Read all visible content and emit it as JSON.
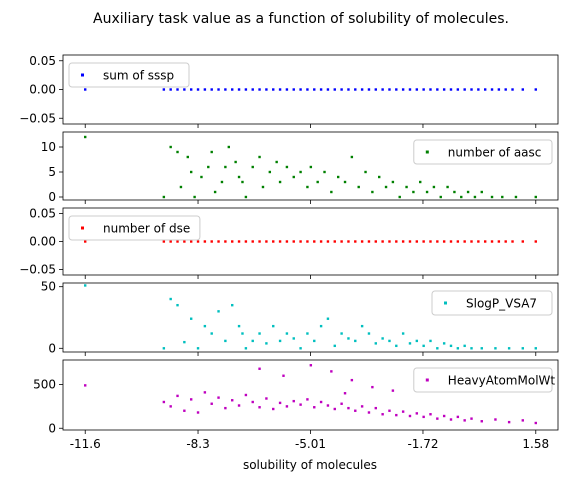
{
  "chart_data": {
    "type": "scatter",
    "title": "Auxiliary task value as a function of solubility of molecules.",
    "xlabel": "solubility of molecules",
    "x_ticks": [
      -11.6,
      -8.3,
      -5.01,
      -1.72,
      1.58
    ],
    "x_tick_labels": [
      "-11.6",
      "-8.3",
      "-5.01",
      "-1.72",
      "1.58"
    ],
    "xlim": [
      -12.25,
      2.23
    ],
    "grid": false,
    "panels": [
      {
        "name": "sum of sssp",
        "color": "#0000ff",
        "legend_loc": "upper left",
        "ylim": [
          -0.06,
          0.06
        ],
        "y_ticks": [
          -0.05,
          0,
          0.05
        ],
        "y_tick_labels": [
          "−0.05",
          "0.00",
          "0.05"
        ],
        "points": [
          [
            -11.6,
            0
          ],
          [
            -9.3,
            0
          ],
          [
            -9.1,
            0
          ],
          [
            -8.9,
            0
          ],
          [
            -8.7,
            0
          ],
          [
            -8.5,
            0
          ],
          [
            -8.3,
            0
          ],
          [
            -8.1,
            0
          ],
          [
            -7.9,
            0
          ],
          [
            -7.7,
            0
          ],
          [
            -7.5,
            0
          ],
          [
            -7.3,
            0
          ],
          [
            -7.1,
            0
          ],
          [
            -6.9,
            0
          ],
          [
            -6.7,
            0
          ],
          [
            -6.5,
            0
          ],
          [
            -6.3,
            0
          ],
          [
            -6.1,
            0
          ],
          [
            -5.9,
            0
          ],
          [
            -5.7,
            0
          ],
          [
            -5.5,
            0
          ],
          [
            -5.3,
            0
          ],
          [
            -5.1,
            0
          ],
          [
            -4.9,
            0
          ],
          [
            -4.7,
            0
          ],
          [
            -4.5,
            0
          ],
          [
            -4.3,
            0
          ],
          [
            -4.1,
            0
          ],
          [
            -3.9,
            0
          ],
          [
            -3.7,
            0
          ],
          [
            -3.5,
            0
          ],
          [
            -3.3,
            0
          ],
          [
            -3.1,
            0
          ],
          [
            -2.9,
            0
          ],
          [
            -2.7,
            0
          ],
          [
            -2.5,
            0
          ],
          [
            -2.3,
            0
          ],
          [
            -2.1,
            0
          ],
          [
            -1.9,
            0
          ],
          [
            -1.7,
            0
          ],
          [
            -1.5,
            0
          ],
          [
            -1.3,
            0
          ],
          [
            -1.1,
            0
          ],
          [
            -0.9,
            0
          ],
          [
            -0.7,
            0
          ],
          [
            -0.5,
            0
          ],
          [
            -0.3,
            0
          ],
          [
            -0.1,
            0
          ],
          [
            0.1,
            0
          ],
          [
            0.3,
            0
          ],
          [
            0.5,
            0
          ],
          [
            0.7,
            0
          ],
          [
            0.9,
            0
          ],
          [
            1.2,
            0
          ],
          [
            1.58,
            0
          ]
        ]
      },
      {
        "name": "number of aasc",
        "color": "#008000",
        "legend_loc": "upper right",
        "ylim": [
          -0.6,
          13
        ],
        "y_ticks": [
          0,
          5,
          10
        ],
        "y_tick_labels": [
          "0",
          "5",
          "10"
        ],
        "points": [
          [
            -11.6,
            12
          ],
          [
            -9.3,
            0
          ],
          [
            -9.1,
            10
          ],
          [
            -8.9,
            9
          ],
          [
            -8.8,
            2
          ],
          [
            -8.6,
            8
          ],
          [
            -8.5,
            5
          ],
          [
            -8.4,
            0
          ],
          [
            -8.2,
            4
          ],
          [
            -8.0,
            6
          ],
          [
            -7.9,
            9
          ],
          [
            -7.8,
            1
          ],
          [
            -7.6,
            3
          ],
          [
            -7.5,
            6
          ],
          [
            -7.4,
            10
          ],
          [
            -7.2,
            7
          ],
          [
            -7.1,
            4
          ],
          [
            -7.0,
            3
          ],
          [
            -6.9,
            0
          ],
          [
            -6.7,
            6
          ],
          [
            -6.5,
            8
          ],
          [
            -6.4,
            2
          ],
          [
            -6.2,
            5
          ],
          [
            -6.0,
            7
          ],
          [
            -5.9,
            3
          ],
          [
            -5.7,
            6
          ],
          [
            -5.5,
            4
          ],
          [
            -5.3,
            5
          ],
          [
            -5.1,
            2
          ],
          [
            -5.0,
            6
          ],
          [
            -4.8,
            3
          ],
          [
            -4.6,
            5
          ],
          [
            -4.4,
            1
          ],
          [
            -4.2,
            4
          ],
          [
            -4.0,
            3
          ],
          [
            -3.8,
            8
          ],
          [
            -3.6,
            2
          ],
          [
            -3.4,
            5
          ],
          [
            -3.2,
            1
          ],
          [
            -3.0,
            4
          ],
          [
            -2.8,
            2
          ],
          [
            -2.6,
            3
          ],
          [
            -2.4,
            0
          ],
          [
            -2.2,
            2
          ],
          [
            -2.0,
            1
          ],
          [
            -1.8,
            3
          ],
          [
            -1.6,
            1
          ],
          [
            -1.4,
            2
          ],
          [
            -1.2,
            0
          ],
          [
            -1.0,
            2
          ],
          [
            -0.8,
            1
          ],
          [
            -0.6,
            0
          ],
          [
            -0.4,
            1
          ],
          [
            -0.2,
            0
          ],
          [
            0.0,
            1
          ],
          [
            0.3,
            0
          ],
          [
            0.6,
            0
          ],
          [
            1.0,
            0
          ],
          [
            1.58,
            0
          ]
        ]
      },
      {
        "name": "number of dse",
        "color": "#ff0000",
        "legend_loc": "upper left",
        "ylim": [
          -0.06,
          0.06
        ],
        "y_ticks": [
          -0.05,
          0,
          0.05
        ],
        "y_tick_labels": [
          "−0.05",
          "0.00",
          "0.05"
        ],
        "points": [
          [
            -11.6,
            0
          ],
          [
            -9.3,
            0
          ],
          [
            -9.1,
            0
          ],
          [
            -8.9,
            0
          ],
          [
            -8.7,
            0
          ],
          [
            -8.5,
            0
          ],
          [
            -8.3,
            0
          ],
          [
            -8.1,
            0
          ],
          [
            -7.9,
            0
          ],
          [
            -7.7,
            0
          ],
          [
            -7.5,
            0
          ],
          [
            -7.3,
            0
          ],
          [
            -7.1,
            0
          ],
          [
            -6.9,
            0
          ],
          [
            -6.7,
            0
          ],
          [
            -6.5,
            0
          ],
          [
            -6.3,
            0
          ],
          [
            -6.1,
            0
          ],
          [
            -5.9,
            0
          ],
          [
            -5.7,
            0
          ],
          [
            -5.5,
            0
          ],
          [
            -5.3,
            0
          ],
          [
            -5.1,
            0
          ],
          [
            -4.9,
            0
          ],
          [
            -4.7,
            0
          ],
          [
            -4.5,
            0
          ],
          [
            -4.3,
            0
          ],
          [
            -4.1,
            0
          ],
          [
            -3.9,
            0
          ],
          [
            -3.7,
            0
          ],
          [
            -3.5,
            0
          ],
          [
            -3.3,
            0
          ],
          [
            -3.1,
            0
          ],
          [
            -2.9,
            0
          ],
          [
            -2.7,
            0
          ],
          [
            -2.5,
            0
          ],
          [
            -2.3,
            0
          ],
          [
            -2.1,
            0
          ],
          [
            -1.9,
            0
          ],
          [
            -1.7,
            0
          ],
          [
            -1.5,
            0
          ],
          [
            -1.3,
            0
          ],
          [
            -1.1,
            0
          ],
          [
            -0.9,
            0
          ],
          [
            -0.7,
            0
          ],
          [
            -0.5,
            0
          ],
          [
            -0.3,
            0
          ],
          [
            -0.1,
            0
          ],
          [
            0.1,
            0
          ],
          [
            0.3,
            0
          ],
          [
            0.5,
            0
          ],
          [
            0.7,
            0
          ],
          [
            0.9,
            0
          ],
          [
            1.2,
            0
          ],
          [
            1.58,
            0
          ]
        ]
      },
      {
        "name": "SlogP_VSA7",
        "color": "#00bfbf",
        "legend_loc": "upper right",
        "ylim": [
          -3,
          53
        ],
        "y_ticks": [
          0,
          50
        ],
        "y_tick_labels": [
          "0",
          "50"
        ],
        "points": [
          [
            -11.6,
            51
          ],
          [
            -9.3,
            0
          ],
          [
            -9.1,
            40
          ],
          [
            -8.9,
            35
          ],
          [
            -8.7,
            5
          ],
          [
            -8.5,
            24
          ],
          [
            -8.3,
            0
          ],
          [
            -8.1,
            18
          ],
          [
            -7.9,
            12
          ],
          [
            -7.7,
            30
          ],
          [
            -7.5,
            6
          ],
          [
            -7.3,
            35
          ],
          [
            -7.1,
            18
          ],
          [
            -7.0,
            12
          ],
          [
            -6.9,
            0
          ],
          [
            -6.7,
            6
          ],
          [
            -6.5,
            12
          ],
          [
            -6.3,
            4
          ],
          [
            -6.1,
            18
          ],
          [
            -5.9,
            6
          ],
          [
            -5.7,
            12
          ],
          [
            -5.5,
            8
          ],
          [
            -5.3,
            0
          ],
          [
            -5.1,
            12
          ],
          [
            -4.9,
            6
          ],
          [
            -4.7,
            18
          ],
          [
            -4.5,
            24
          ],
          [
            -4.3,
            2
          ],
          [
            -4.1,
            12
          ],
          [
            -3.9,
            8
          ],
          [
            -3.7,
            6
          ],
          [
            -3.5,
            18
          ],
          [
            -3.3,
            12
          ],
          [
            -3.1,
            4
          ],
          [
            -2.9,
            8
          ],
          [
            -2.7,
            6
          ],
          [
            -2.5,
            2
          ],
          [
            -2.3,
            12
          ],
          [
            -2.1,
            4
          ],
          [
            -1.9,
            6
          ],
          [
            -1.7,
            2
          ],
          [
            -1.5,
            6
          ],
          [
            -1.3,
            0
          ],
          [
            -1.1,
            4
          ],
          [
            -0.9,
            2
          ],
          [
            -0.7,
            0
          ],
          [
            -0.5,
            2
          ],
          [
            -0.3,
            0
          ],
          [
            0.0,
            0
          ],
          [
            0.4,
            0
          ],
          [
            0.8,
            0
          ],
          [
            1.2,
            0
          ],
          [
            1.58,
            0
          ]
        ]
      },
      {
        "name": "HeavyAtomMolWt",
        "color": "#bf00bf",
        "legend_loc": "upper right",
        "ylim": [
          -20,
          780
        ],
        "y_ticks": [
          0,
          500
        ],
        "y_tick_labels": [
          "0",
          "500"
        ],
        "points": [
          [
            -11.6,
            490
          ],
          [
            -9.3,
            300
          ],
          [
            -9.1,
            250
          ],
          [
            -8.9,
            370
          ],
          [
            -8.7,
            200
          ],
          [
            -8.5,
            330
          ],
          [
            -8.3,
            180
          ],
          [
            -8.1,
            410
          ],
          [
            -7.9,
            280
          ],
          [
            -7.7,
            350
          ],
          [
            -7.5,
            230
          ],
          [
            -7.3,
            320
          ],
          [
            -7.1,
            260
          ],
          [
            -6.9,
            380
          ],
          [
            -6.7,
            300
          ],
          [
            -6.5,
            240
          ],
          [
            -6.3,
            340
          ],
          [
            -6.1,
            220
          ],
          [
            -5.9,
            290
          ],
          [
            -5.7,
            250
          ],
          [
            -5.5,
            310
          ],
          [
            -5.3,
            270
          ],
          [
            -5.1,
            330
          ],
          [
            -4.9,
            240
          ],
          [
            -4.7,
            300
          ],
          [
            -4.5,
            260
          ],
          [
            -4.3,
            220
          ],
          [
            -4.1,
            280
          ],
          [
            -3.9,
            230
          ],
          [
            -3.7,
            200
          ],
          [
            -3.5,
            250
          ],
          [
            -3.3,
            180
          ],
          [
            -3.1,
            230
          ],
          [
            -2.9,
            160
          ],
          [
            -2.7,
            200
          ],
          [
            -2.5,
            150
          ],
          [
            -2.3,
            190
          ],
          [
            -2.1,
            140
          ],
          [
            -1.9,
            170
          ],
          [
            -1.7,
            130
          ],
          [
            -1.5,
            160
          ],
          [
            -1.3,
            110
          ],
          [
            -1.1,
            140
          ],
          [
            -0.9,
            100
          ],
          [
            -0.7,
            130
          ],
          [
            -0.5,
            90
          ],
          [
            -0.3,
            110
          ],
          [
            0.0,
            80
          ],
          [
            0.4,
            100
          ],
          [
            0.8,
            70
          ],
          [
            1.2,
            90
          ],
          [
            1.58,
            60
          ],
          [
            -5.0,
            720
          ],
          [
            -4.4,
            650
          ],
          [
            -3.8,
            550
          ],
          [
            -6.5,
            680
          ],
          [
            -3.2,
            470
          ],
          [
            -2.6,
            430
          ],
          [
            -5.8,
            600
          ],
          [
            -4.0,
            400
          ]
        ]
      }
    ]
  }
}
